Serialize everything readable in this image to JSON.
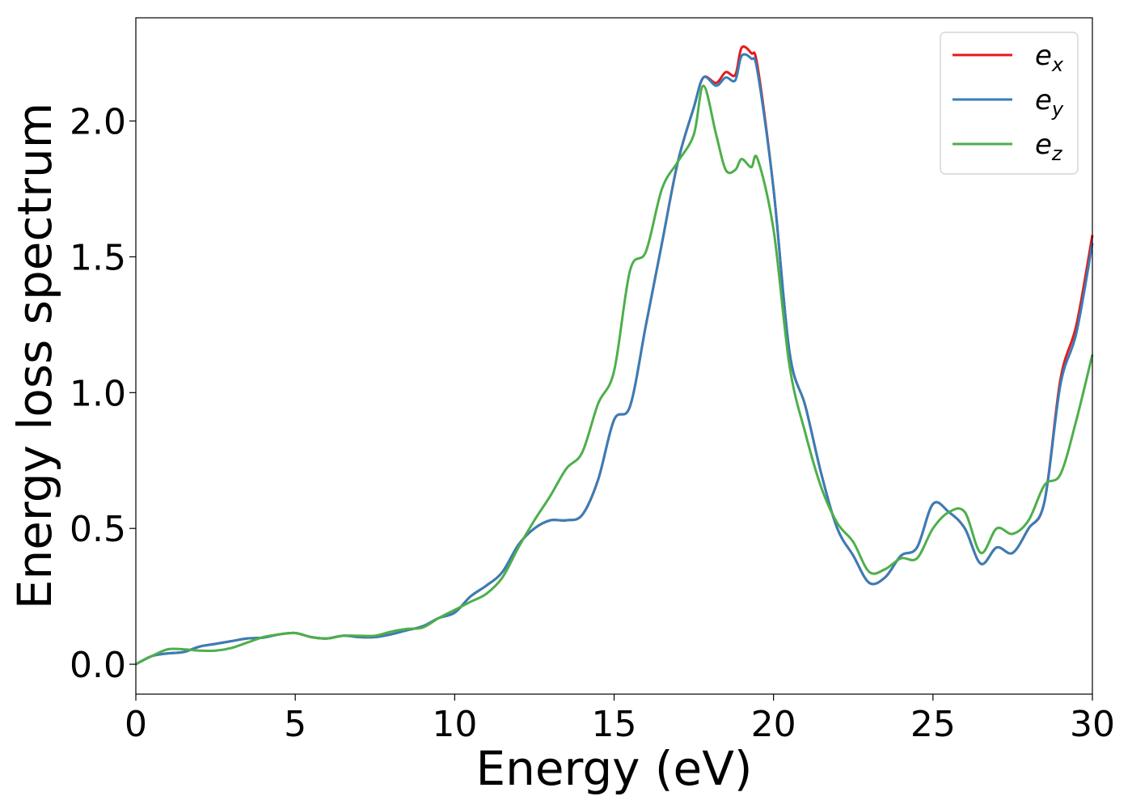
{
  "colors": {
    "ex": "#e41a1c",
    "ey": "#377eb8",
    "ez": "#4daf4a"
  },
  "chart_data": {
    "type": "line",
    "title": "",
    "xlabel": "Energy (eV)",
    "ylabel": "Energy loss spectrum",
    "xlim": [
      0,
      30
    ],
    "ylim": [
      -0.11,
      2.38
    ],
    "xticks": [
      0,
      5,
      10,
      15,
      20,
      25,
      30
    ],
    "yticks": [
      0.0,
      0.5,
      1.0,
      1.5,
      2.0
    ],
    "xtick_labels": [
      "0",
      "5",
      "10",
      "15",
      "20",
      "25",
      "30"
    ],
    "ytick_labels": [
      "0.0",
      "0.5",
      "1.0",
      "1.5",
      "2.0"
    ],
    "grid": false,
    "legend_position": "top-right",
    "series": [
      {
        "name": "e_x",
        "label_base": "e",
        "label_sub": "x",
        "color": "#e41a1c",
        "x": [
          0,
          0.5,
          1,
          1.5,
          2,
          2.5,
          3,
          3.5,
          4,
          4.5,
          5,
          5.5,
          6,
          6.5,
          7,
          7.5,
          8,
          8.5,
          9,
          9.5,
          10,
          10.5,
          11,
          11.5,
          12,
          12.5,
          13,
          13.5,
          14,
          14.5,
          15,
          15.5,
          16,
          16.5,
          17,
          17.5,
          17.8,
          18.2,
          18.5,
          18.8,
          19.0,
          19.3,
          19.5,
          20,
          20.5,
          21,
          21.5,
          22,
          22.5,
          23,
          23.5,
          24,
          24.5,
          25,
          25.5,
          26,
          26.5,
          27,
          27.5,
          28,
          28.5,
          29,
          29.5,
          30
        ],
        "y": [
          0.0,
          0.03,
          0.04,
          0.045,
          0.065,
          0.075,
          0.085,
          0.095,
          0.098,
          0.11,
          0.115,
          0.1,
          0.095,
          0.105,
          0.1,
          0.1,
          0.11,
          0.125,
          0.14,
          0.17,
          0.19,
          0.25,
          0.29,
          0.34,
          0.44,
          0.5,
          0.53,
          0.53,
          0.55,
          0.68,
          0.9,
          0.95,
          1.25,
          1.55,
          1.85,
          2.05,
          2.16,
          2.14,
          2.18,
          2.17,
          2.27,
          2.25,
          2.2,
          1.75,
          1.15,
          0.95,
          0.7,
          0.5,
          0.4,
          0.3,
          0.32,
          0.4,
          0.43,
          0.59,
          0.56,
          0.5,
          0.37,
          0.43,
          0.41,
          0.5,
          0.6,
          1.05,
          1.25,
          1.58
        ]
      },
      {
        "name": "e_y",
        "label_base": "e",
        "label_sub": "y",
        "color": "#377eb8",
        "x": [
          0,
          0.5,
          1,
          1.5,
          2,
          2.5,
          3,
          3.5,
          4,
          4.5,
          5,
          5.5,
          6,
          6.5,
          7,
          7.5,
          8,
          8.5,
          9,
          9.5,
          10,
          10.5,
          11,
          11.5,
          12,
          12.5,
          13,
          13.5,
          14,
          14.5,
          15,
          15.5,
          16,
          16.5,
          17,
          17.5,
          17.8,
          18.2,
          18.5,
          18.8,
          19.0,
          19.3,
          19.5,
          20,
          20.5,
          21,
          21.5,
          22,
          22.5,
          23,
          23.5,
          24,
          24.5,
          25,
          25.5,
          26,
          26.5,
          27,
          27.5,
          28,
          28.5,
          29,
          29.5,
          30
        ],
        "y": [
          0.0,
          0.03,
          0.04,
          0.045,
          0.065,
          0.075,
          0.085,
          0.095,
          0.098,
          0.11,
          0.115,
          0.1,
          0.095,
          0.105,
          0.1,
          0.1,
          0.11,
          0.125,
          0.14,
          0.17,
          0.19,
          0.25,
          0.29,
          0.34,
          0.44,
          0.5,
          0.53,
          0.53,
          0.55,
          0.68,
          0.9,
          0.95,
          1.25,
          1.55,
          1.85,
          2.05,
          2.16,
          2.13,
          2.16,
          2.15,
          2.24,
          2.23,
          2.18,
          1.75,
          1.15,
          0.95,
          0.7,
          0.5,
          0.4,
          0.3,
          0.32,
          0.4,
          0.43,
          0.59,
          0.56,
          0.5,
          0.37,
          0.43,
          0.41,
          0.5,
          0.6,
          1.03,
          1.22,
          1.55
        ]
      },
      {
        "name": "e_z",
        "label_base": "e",
        "label_sub": "z",
        "color": "#4daf4a",
        "x": [
          0,
          0.5,
          1,
          1.5,
          2,
          2.5,
          3,
          3.5,
          4,
          4.5,
          5,
          5.5,
          6,
          6.5,
          7,
          7.5,
          8,
          8.5,
          9,
          9.5,
          10,
          10.5,
          11,
          11.5,
          12,
          12.5,
          13,
          13.5,
          14,
          14.5,
          15,
          15.5,
          16,
          16.5,
          17,
          17.5,
          17.8,
          18.2,
          18.5,
          18.8,
          19.0,
          19.3,
          19.5,
          20,
          20.5,
          21,
          21.5,
          22,
          22.5,
          23,
          23.5,
          24,
          24.5,
          25,
          25.5,
          26,
          26.5,
          27,
          27.5,
          28,
          28.5,
          29,
          29.5,
          30
        ],
        "y": [
          0.0,
          0.03,
          0.055,
          0.055,
          0.05,
          0.05,
          0.06,
          0.08,
          0.1,
          0.11,
          0.115,
          0.1,
          0.095,
          0.105,
          0.105,
          0.105,
          0.12,
          0.13,
          0.135,
          0.17,
          0.2,
          0.23,
          0.26,
          0.32,
          0.43,
          0.53,
          0.62,
          0.72,
          0.78,
          0.96,
          1.08,
          1.45,
          1.52,
          1.75,
          1.85,
          1.95,
          2.13,
          1.95,
          1.82,
          1.82,
          1.86,
          1.83,
          1.86,
          1.6,
          1.1,
          0.85,
          0.65,
          0.52,
          0.45,
          0.34,
          0.35,
          0.39,
          0.39,
          0.5,
          0.56,
          0.56,
          0.41,
          0.5,
          0.48,
          0.53,
          0.66,
          0.7,
          0.9,
          1.14
        ]
      }
    ]
  }
}
